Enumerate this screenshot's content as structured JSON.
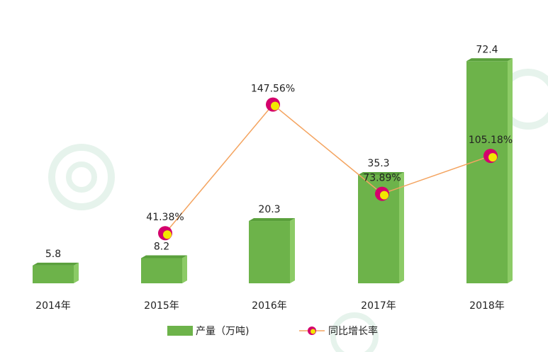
{
  "chart_data": {
    "type": "bar",
    "categories": [
      "2014年",
      "2015年",
      "2016年",
      "2017年",
      "2018年"
    ],
    "series": [
      {
        "name": "产量（万吨)",
        "type": "bar",
        "axis": "left",
        "values": [
          5.8,
          8.2,
          20.3,
          35.3,
          72.4
        ],
        "labels": [
          "5.8",
          "8.2",
          "20.3",
          "35.3",
          "72.4"
        ]
      },
      {
        "name": "同比增长率",
        "type": "line",
        "axis": "right",
        "x": [
          "2015年",
          "2016年",
          "2017年",
          "2018年"
        ],
        "values": [
          41.38,
          147.56,
          73.89,
          105.18
        ],
        "labels": [
          "41.38%",
          "147.56%",
          "73.89%",
          "105.18%"
        ]
      }
    ],
    "y_left_range": [
      0,
      75
    ],
    "y_right_range": [
      0,
      190
    ],
    "grid": false,
    "legend_position": "bottom-center",
    "colors": {
      "bar": "#6db34a",
      "bar_side": "#8ccb66",
      "bar_top": "#5aa03c",
      "line": "#f4a460",
      "marker": "#d4006c",
      "marker_center": "#f2e600"
    }
  }
}
